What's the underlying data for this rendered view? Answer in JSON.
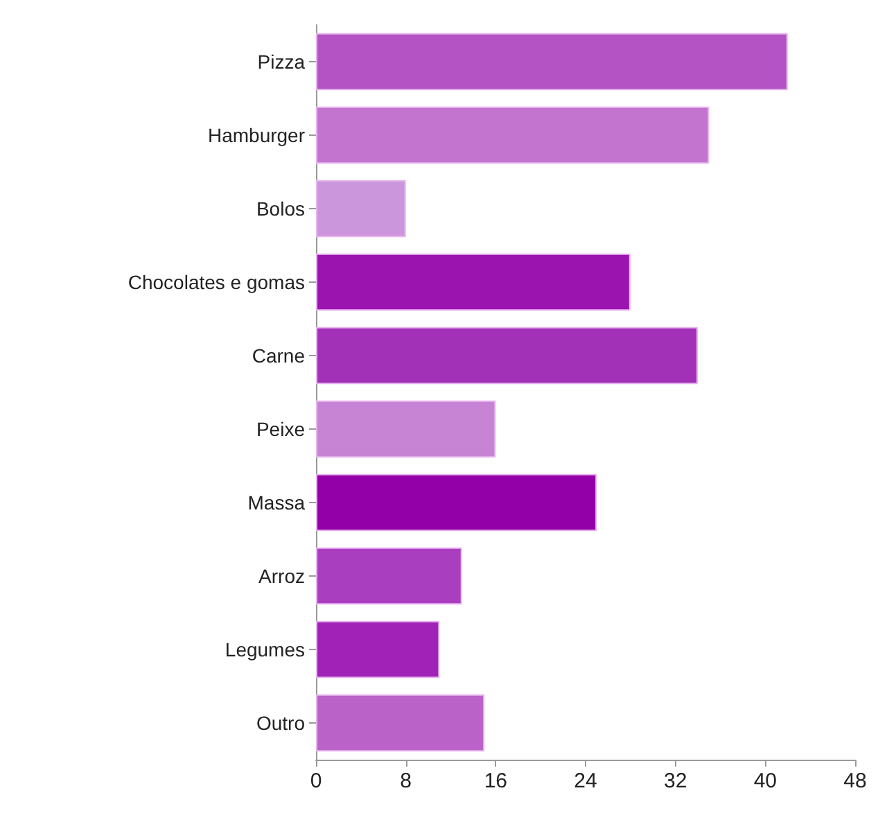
{
  "chart_data": {
    "type": "bar",
    "orientation": "horizontal",
    "categories": [
      "Pizza",
      "Hamburger",
      "Bolos",
      "Chocolates e gomas",
      "Carne",
      "Peixe",
      "Massa",
      "Arroz",
      "Legumes",
      "Outro"
    ],
    "values": [
      42,
      35,
      8,
      28,
      34,
      16,
      25,
      13,
      11,
      15
    ],
    "colors": [
      "#b453c4",
      "#c374cf",
      "#cc96dc",
      "#9c14b0",
      "#a331b8",
      "#c884d4",
      "#9400a8",
      "#a93fbf",
      "#a022b6",
      "#bb62c8"
    ],
    "xlim": [
      0,
      48
    ],
    "xticks": [
      0,
      8,
      16,
      24,
      32,
      40,
      48
    ]
  }
}
